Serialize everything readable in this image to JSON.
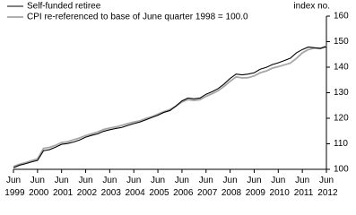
{
  "chart_data": {
    "type": "line",
    "y_axis_label": "index no.",
    "categories": [
      "Jun 1999",
      null,
      null,
      null,
      "Jun 2000",
      null,
      null,
      null,
      "Jun 2001",
      null,
      null,
      null,
      "Jun 2002",
      null,
      null,
      null,
      "Jun 2003",
      null,
      null,
      null,
      "Jun 2004",
      null,
      null,
      null,
      "Jun 2005",
      null,
      null,
      null,
      "Jun 2006",
      null,
      null,
      null,
      "Jun 2007",
      null,
      null,
      null,
      "Jun 2008",
      null,
      null,
      null,
      "Jun 2009",
      null,
      null,
      null,
      "Jun 2010",
      null,
      null,
      null,
      "Jun 2011",
      null,
      null,
      null,
      "Jun 2012"
    ],
    "series": [
      {
        "name": "Self-funded retiree",
        "color": "#000000",
        "values": [
          100.6,
          101.6,
          102.2,
          102.9,
          103.5,
          107.3,
          107.7,
          108.7,
          109.8,
          110.1,
          110.7,
          111.5,
          112.6,
          113.3,
          113.9,
          114.9,
          115.5,
          116.0,
          116.4,
          117.2,
          117.9,
          118.5,
          119.4,
          120.3,
          121.2,
          122.3,
          123.0,
          124.8,
          126.8,
          127.9,
          127.6,
          127.9,
          129.4,
          130.4,
          131.6,
          133.4,
          135.6,
          137.3,
          137.0,
          137.3,
          137.8,
          139.2,
          139.9,
          141.0,
          141.7,
          142.6,
          143.5,
          145.6,
          146.9,
          147.9,
          147.6,
          147.4,
          148.0
        ]
      },
      {
        "name": "CPI re-referenced to base of June quarter 1998 = 100.0",
        "color": "#a6a6a6",
        "values": [
          101.1,
          102.0,
          102.6,
          103.4,
          104.1,
          108.2,
          108.6,
          109.4,
          110.5,
          110.8,
          111.6,
          112.3,
          113.2,
          113.9,
          114.6,
          115.6,
          116.2,
          116.6,
          117.2,
          117.9,
          118.5,
          119.0,
          119.9,
          120.6,
          121.6,
          122.6,
          123.4,
          124.7,
          126.4,
          127.3,
          127.0,
          127.3,
          128.6,
          129.6,
          130.8,
          132.5,
          134.5,
          136.2,
          135.8,
          135.9,
          136.6,
          137.8,
          138.5,
          139.6,
          140.2,
          140.9,
          141.6,
          143.4,
          145.6,
          146.9,
          147.5,
          147.3,
          148.4
        ]
      }
    ],
    "ylim": [
      100,
      160
    ],
    "yticks": [
      100,
      110,
      120,
      130,
      140,
      150,
      160
    ],
    "legend": "top-left",
    "grid": false
  }
}
